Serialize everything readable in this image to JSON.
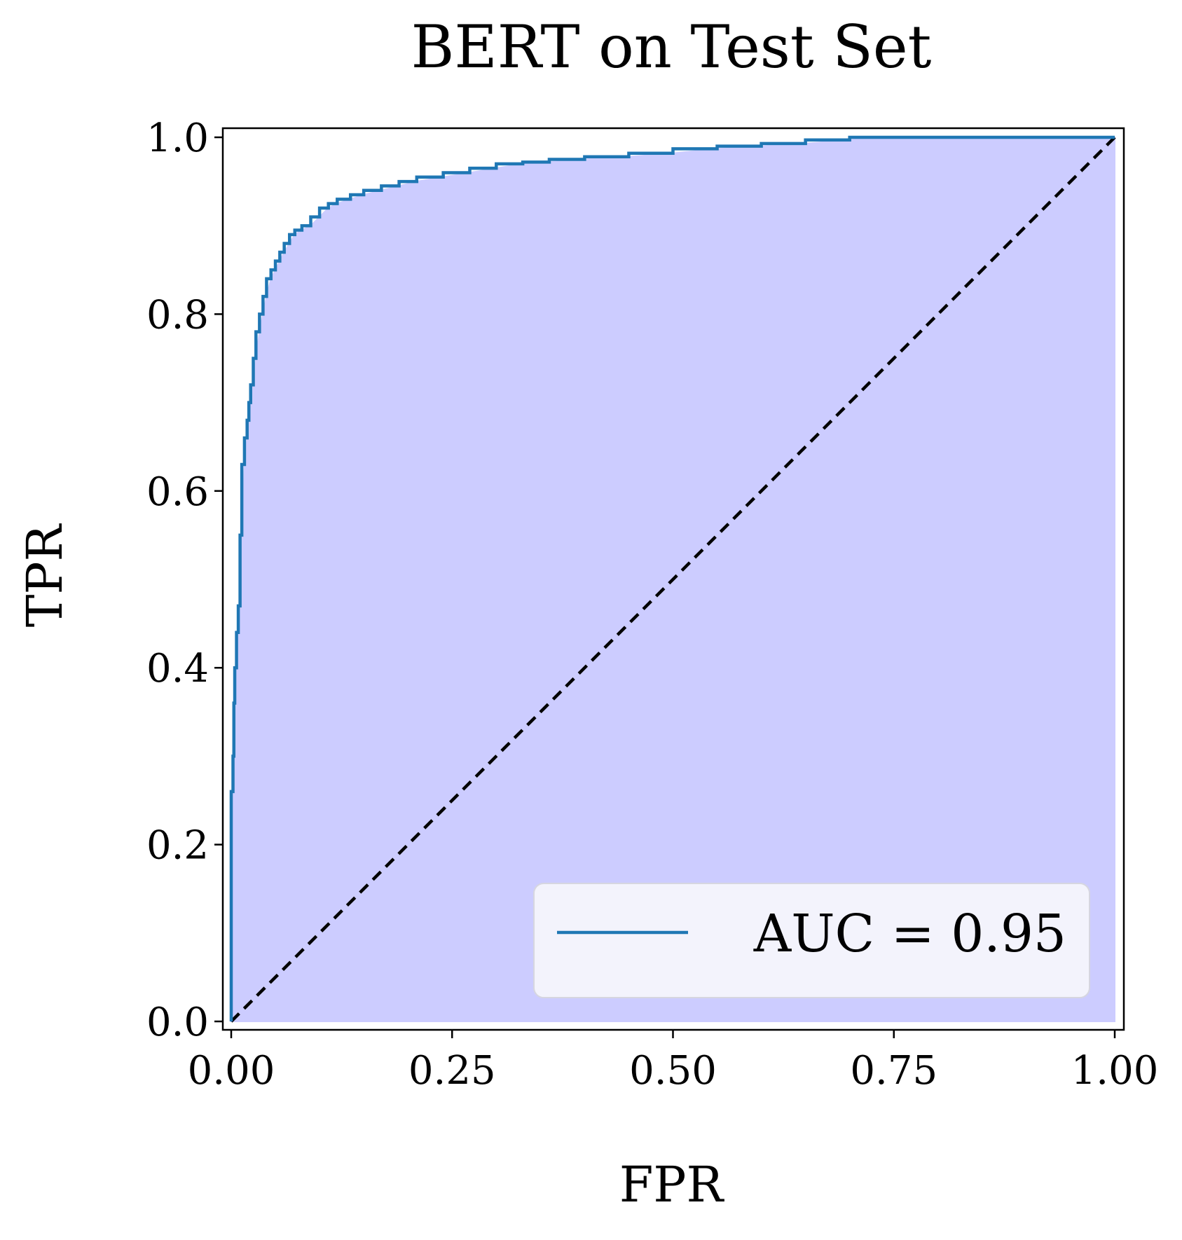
{
  "chart_data": {
    "type": "line",
    "title": "BERT on Test Set",
    "xlabel": "FPR",
    "ylabel": "TPR",
    "xlim": [
      0,
      1
    ],
    "ylim": [
      0,
      1
    ],
    "x_ticks": [
      "0.00",
      "0.25",
      "0.50",
      "0.75",
      "1.00"
    ],
    "y_ticks": [
      "0.0",
      "0.2",
      "0.4",
      "0.6",
      "0.8",
      "1.0"
    ],
    "grid": false,
    "legend_position": "bottom-right",
    "fill_under_curve": true,
    "series": [
      {
        "name": "AUC = 0.95",
        "color": "#1f77b4",
        "x": [
          0.0,
          0.0,
          0.002,
          0.003,
          0.004,
          0.006,
          0.008,
          0.01,
          0.012,
          0.015,
          0.018,
          0.02,
          0.022,
          0.025,
          0.028,
          0.032,
          0.036,
          0.04,
          0.045,
          0.05,
          0.055,
          0.06,
          0.066,
          0.072,
          0.08,
          0.09,
          0.1,
          0.11,
          0.12,
          0.135,
          0.15,
          0.17,
          0.19,
          0.21,
          0.24,
          0.27,
          0.3,
          0.33,
          0.36,
          0.4,
          0.45,
          0.5,
          0.55,
          0.6,
          0.65,
          0.7,
          0.73,
          0.8,
          0.9,
          1.0
        ],
        "y": [
          0.0,
          0.15,
          0.26,
          0.3,
          0.36,
          0.4,
          0.44,
          0.47,
          0.55,
          0.63,
          0.66,
          0.68,
          0.7,
          0.72,
          0.75,
          0.78,
          0.8,
          0.82,
          0.84,
          0.85,
          0.86,
          0.87,
          0.88,
          0.89,
          0.895,
          0.9,
          0.91,
          0.92,
          0.925,
          0.93,
          0.935,
          0.94,
          0.945,
          0.95,
          0.955,
          0.96,
          0.965,
          0.97,
          0.972,
          0.975,
          0.978,
          0.982,
          0.987,
          0.99,
          0.993,
          0.997,
          1.0,
          1.0,
          1.0,
          1.0
        ]
      },
      {
        "name": "",
        "color": "#000000",
        "style": "dashed",
        "x": [
          0,
          1
        ],
        "y": [
          0,
          1
        ]
      }
    ],
    "fill_color": "#ccccff"
  }
}
